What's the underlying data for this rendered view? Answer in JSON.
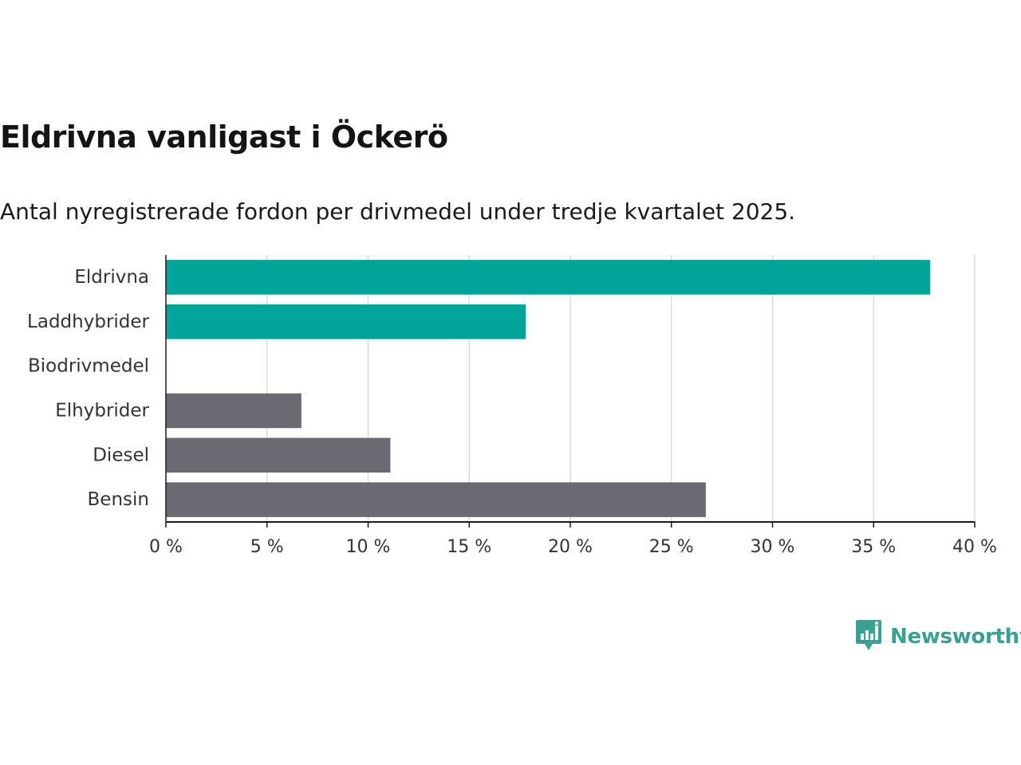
{
  "chart_data": {
    "type": "bar",
    "orientation": "horizontal",
    "title": "Eldrivna vanligast i Öckerö",
    "subtitle": "Antal nyregistrerade fordon per drivmedel under tredje kvartalet 2025.",
    "categories": [
      "Eldrivna",
      "Laddhybrider",
      "Biodrivmedel",
      "Elhybrider",
      "Diesel",
      "Bensin"
    ],
    "values": [
      37.8,
      17.8,
      0,
      6.7,
      11.1,
      26.7
    ],
    "colors": [
      "#00a398",
      "#00a398",
      "#00a398",
      "#6d6b72",
      "#6d6b72",
      "#6d6b72"
    ],
    "xlim": [
      0,
      40
    ],
    "xticks": [
      0,
      5,
      10,
      15,
      20,
      25,
      30,
      35,
      40
    ],
    "tick_labels": [
      "0 %",
      "5 %",
      "10 %",
      "15 %",
      "20 %",
      "25 %",
      "30 %",
      "35 %",
      "40 %"
    ],
    "xlabel": "",
    "ylabel": "",
    "grid": true
  },
  "brand": {
    "name": "Newsworthy",
    "icon": "newsworthy-logo-icon",
    "color": "#3aa192"
  }
}
